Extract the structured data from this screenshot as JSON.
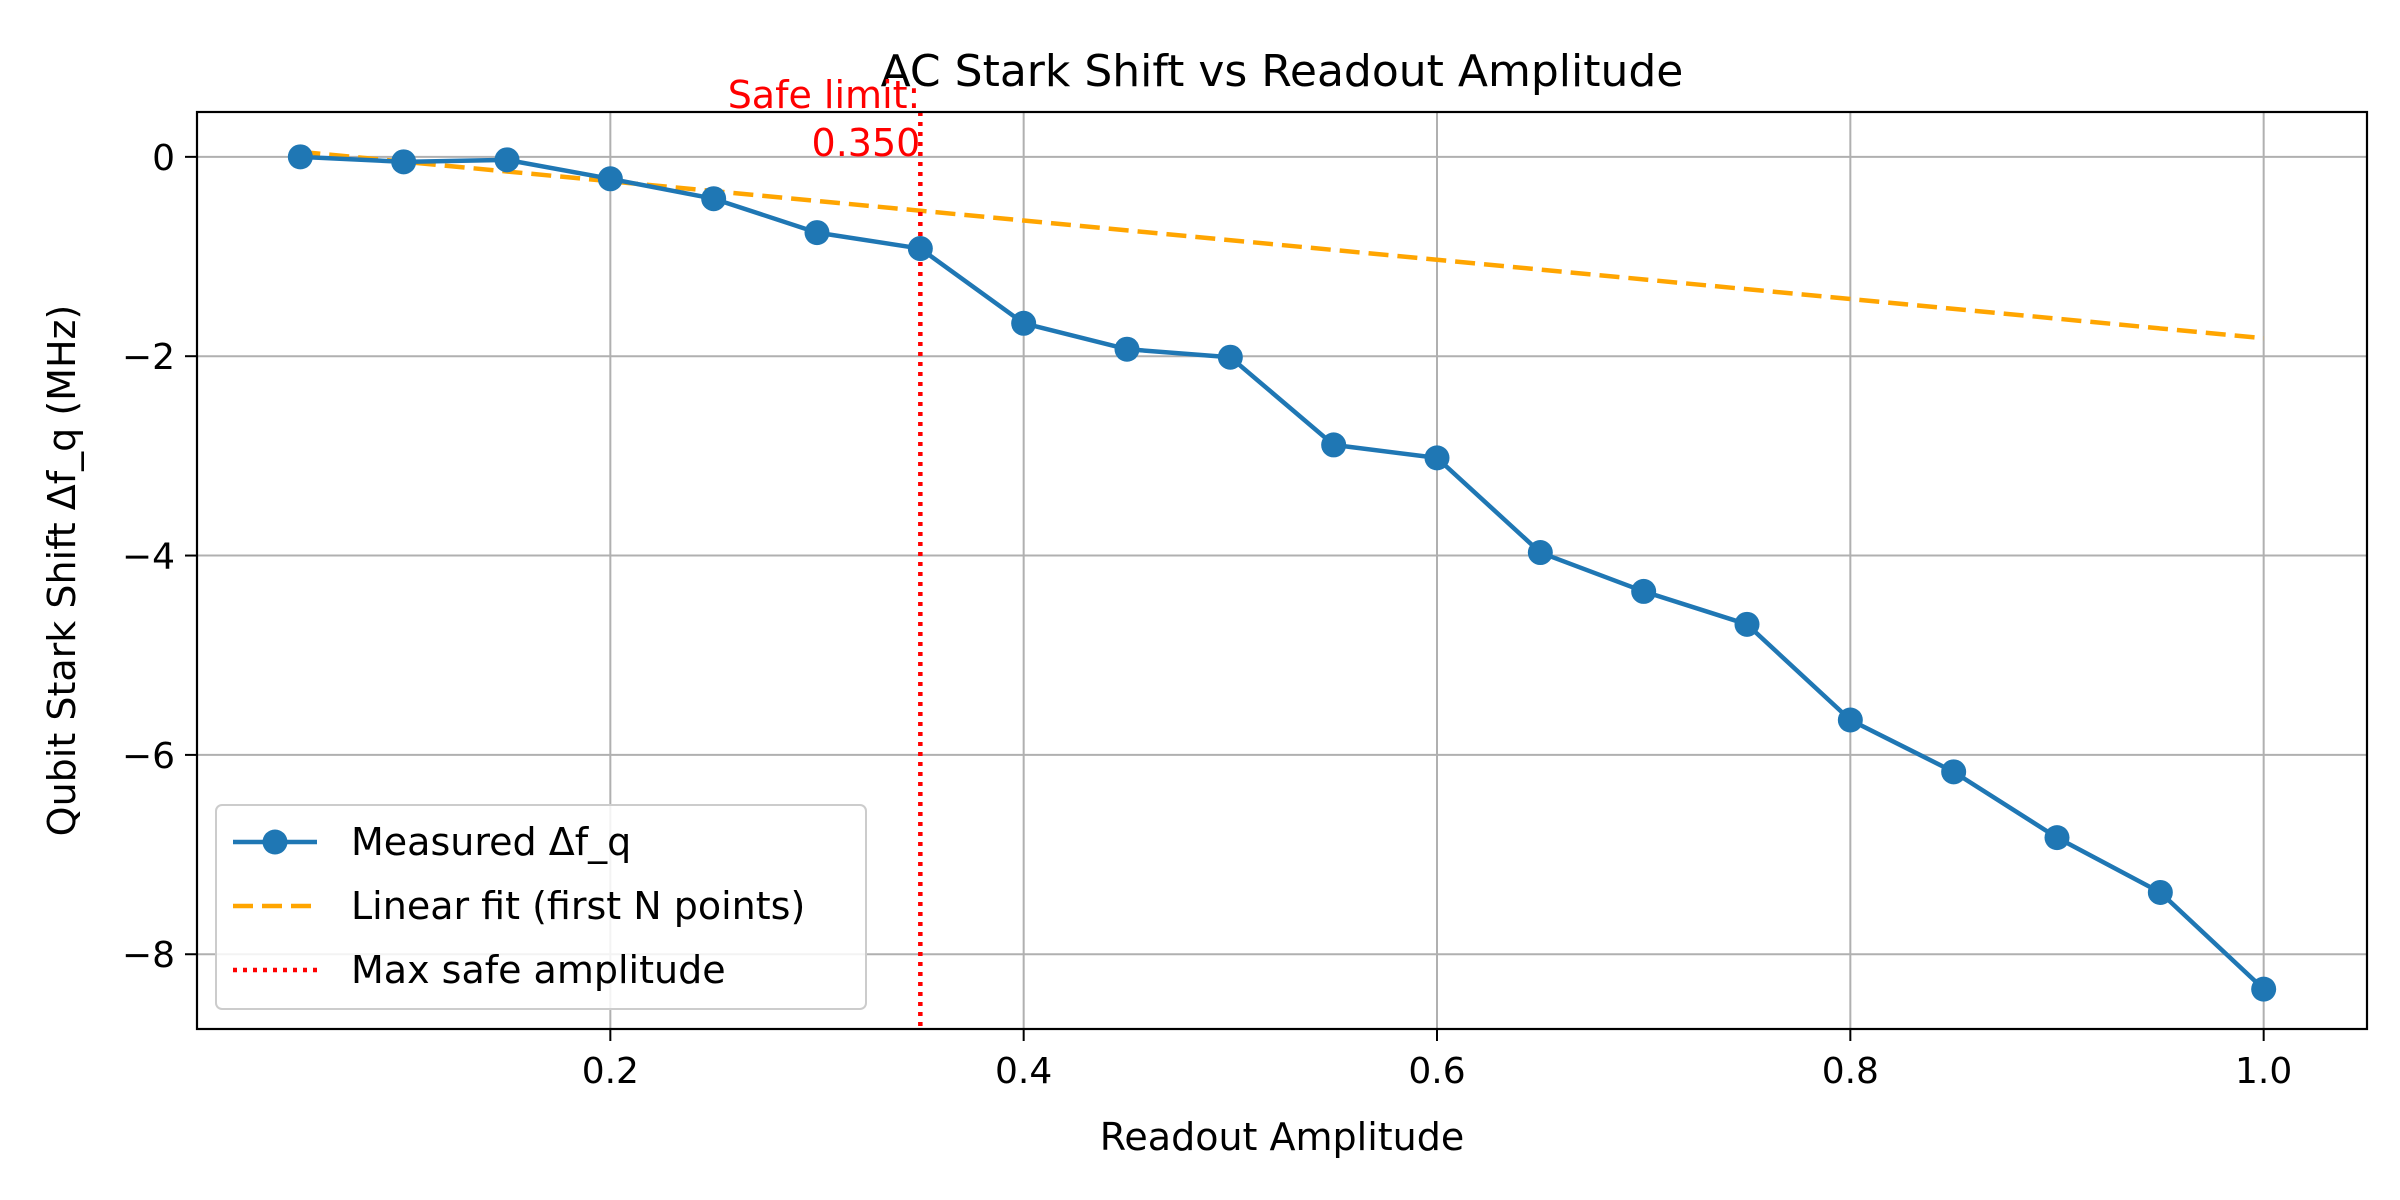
{
  "chart_data": {
    "type": "line",
    "title": "AC Stark Shift vs Readout Amplitude",
    "xlabel": "Readout Amplitude",
    "ylabel": "Qubit Stark Shift Δf_q (MHz)",
    "xlim": [
      0.0,
      1.05
    ],
    "ylim": [
      -8.75,
      0.45
    ],
    "xticks": [
      0.2,
      0.4,
      0.6,
      0.8,
      1.0
    ],
    "xtick_labels": [
      "0.2",
      "0.4",
      "0.6",
      "0.8",
      "1.0"
    ],
    "yticks": [
      0,
      -2,
      -4,
      -6,
      -8
    ],
    "ytick_labels": [
      "0",
      "−2",
      "−4",
      "−6",
      "−8"
    ],
    "grid": true,
    "legend_position": "bottom-left",
    "series": [
      {
        "name": "Measured Δf_q",
        "style": "line-markers",
        "color": "#1f77b4",
        "x": [
          0.05,
          0.1,
          0.15,
          0.2,
          0.25,
          0.3,
          0.35,
          0.4,
          0.45,
          0.5,
          0.55,
          0.6,
          0.65,
          0.7,
          0.75,
          0.8,
          0.85,
          0.9,
          0.95,
          1.0
        ],
        "y": [
          0.0,
          -0.05,
          -0.03,
          -0.22,
          -0.42,
          -0.76,
          -0.92,
          -1.67,
          -1.93,
          -2.01,
          -2.89,
          -3.02,
          -3.97,
          -4.36,
          -4.69,
          -5.65,
          -6.17,
          -6.83,
          -7.38,
          -8.35
        ]
      },
      {
        "name": "Linear fit (first N points)",
        "style": "dashed",
        "color": "#ffa500",
        "x": [
          0.05,
          1.0
        ],
        "y": [
          0.05,
          -1.82
        ]
      },
      {
        "name": "Max safe amplitude",
        "style": "dotted-vertical",
        "color": "#ff0000",
        "x": [
          0.35
        ]
      }
    ],
    "annotations": [
      {
        "text_line1": "Safe limit:",
        "text_line2": "0.350",
        "x": 0.35,
        "color": "#ff0000"
      }
    ]
  }
}
